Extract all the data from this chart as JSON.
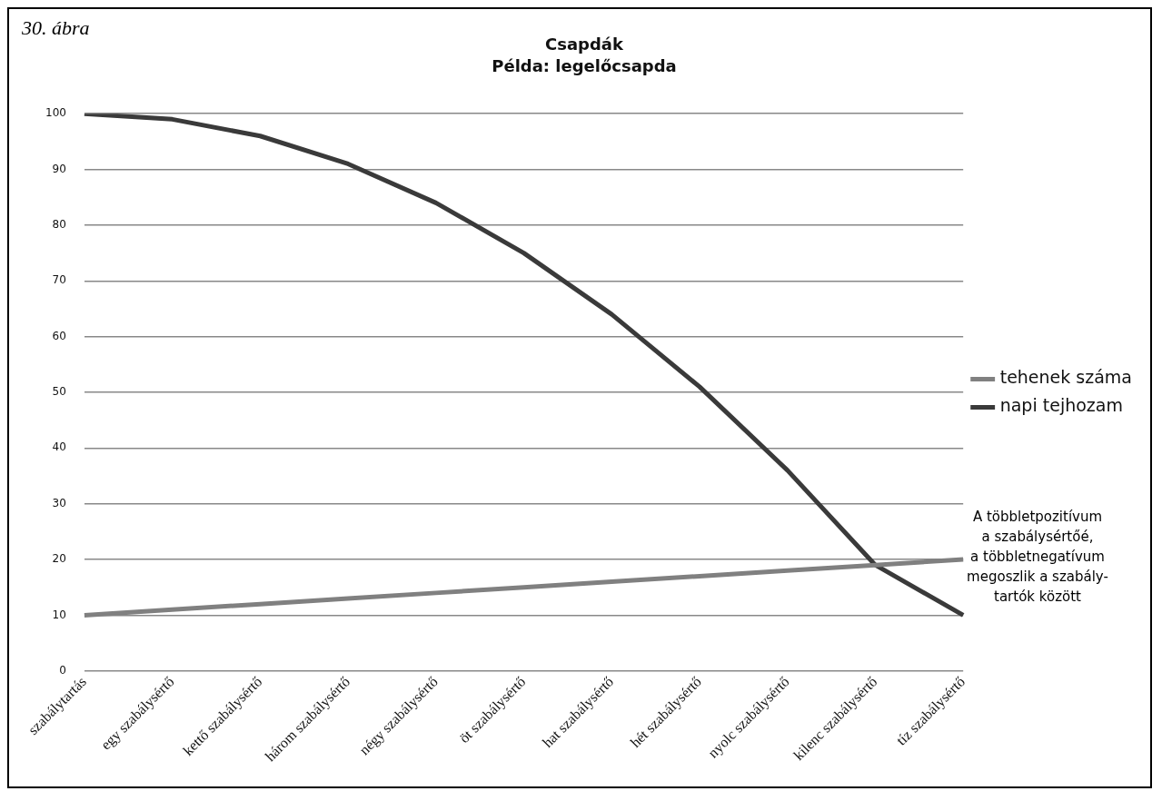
{
  "chart_data": {
    "type": "line",
    "title": "Csapdák",
    "subtitle": "Példa: legelőcsapda",
    "annotations": [
      "30. ábra",
      "A többletpozitívum\na szabálysértőé,\na többletnegatívum\nmegoszlik a szabály-\ntartók között"
    ],
    "categories": [
      "szabálytartás",
      "egy szabálysértő",
      "kettő szabálysértő",
      "három szabálysértő",
      "négy szabálysértő",
      "öt szabálysértő",
      "hat szabálysértő",
      "hét szabálysértő",
      "nyolc szabálysértő",
      "kilenc szabálysértő",
      "tíz szabálysértő"
    ],
    "series": [
      {
        "name": "tehenek száma",
        "color": "#808080",
        "values": [
          10,
          11,
          12,
          13,
          14,
          15,
          16,
          17,
          18,
          19,
          20
        ]
      },
      {
        "name": "napi tejhozam",
        "color": "#3a3a3a",
        "values": [
          100,
          99,
          96,
          91,
          84,
          75,
          64,
          51,
          36,
          19,
          10
        ]
      }
    ],
    "ylim": [
      0,
      100
    ],
    "yticks": [
      0,
      10,
      20,
      30,
      40,
      50,
      60,
      70,
      80,
      90,
      100
    ],
    "grid": "y",
    "legend": "right",
    "marker": "none",
    "line_style": "solid"
  }
}
